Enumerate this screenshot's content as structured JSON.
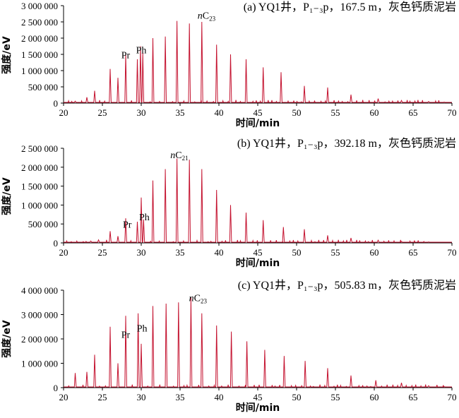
{
  "chart_data": [
    {
      "type": "line",
      "title": "(a) YQ1井，P₁₋₃p，167.5 m，灰色钙质泥岩",
      "xlabel": "时间/min",
      "ylabel": "强度/eV",
      "xlim": [
        20,
        70
      ],
      "ylim": [
        0,
        3000000
      ],
      "xticks": [
        20,
        25,
        30,
        35,
        40,
        45,
        50,
        55,
        60,
        65,
        70
      ],
      "yticks": [
        0,
        500000,
        1000000,
        1500000,
        2000000,
        2500000,
        3000000
      ],
      "ytick_labels": [
        "0",
        "500 000",
        "1 000 000",
        "1 500 000",
        "2 000 000",
        "2 500 000",
        "3 000 000"
      ],
      "annotations": [
        {
          "text": "Pr",
          "x": 28.0,
          "y": 1380000
        },
        {
          "text": "Ph",
          "x": 30.0,
          "y": 1530000
        },
        {
          "text": "nC",
          "sub": "23",
          "x": 38.4,
          "y": 2600000
        }
      ],
      "series": [
        {
          "values": [
            [
              21.5,
              60000
            ],
            [
              23.0,
              180000
            ],
            [
              24.0,
              380000
            ],
            [
              26.0,
              1050000
            ],
            [
              27.0,
              780000
            ],
            [
              28.0,
              1500000
            ],
            [
              29.5,
              1350000
            ],
            [
              29.9,
              1750000
            ],
            [
              30.2,
              1550000
            ],
            [
              31.5,
              2000000
            ],
            [
              33.1,
              2050000
            ],
            [
              34.6,
              2530000
            ],
            [
              36.2,
              2450000
            ],
            [
              37.8,
              2500000
            ],
            [
              39.7,
              1800000
            ],
            [
              41.5,
              1500000
            ],
            [
              43.5,
              1350000
            ],
            [
              45.7,
              1100000
            ],
            [
              48.0,
              950000
            ],
            [
              51.0,
              530000
            ],
            [
              54.0,
              480000
            ],
            [
              57.0,
              260000
            ],
            [
              60.5,
              140000
            ],
            [
              63.5,
              80000
            ],
            [
              67.0,
              50000
            ],
            [
              69.0,
              30000
            ]
          ]
        }
      ]
    },
    {
      "type": "line",
      "title": "(b) YQ1井，P₁₋₃p，392.18 m，灰色钙质泥岩",
      "xlabel": "时间/min",
      "ylabel": "强度/eV",
      "xlim": [
        20,
        70
      ],
      "ylim": [
        0,
        2500000
      ],
      "xticks": [
        20,
        25,
        30,
        35,
        40,
        45,
        50,
        55,
        60,
        65,
        70
      ],
      "yticks": [
        0,
        500000,
        1000000,
        1500000,
        2000000,
        2500000
      ],
      "ytick_labels": [
        "0",
        "500 000",
        "1 000 000",
        "1 500 000",
        "2 000 000",
        "2 500 000"
      ],
      "annotations": [
        {
          "text": "Pr",
          "x": 28.2,
          "y": 400000
        },
        {
          "text": "Ph",
          "x": 30.4,
          "y": 600000
        },
        {
          "text": "nC",
          "sub": "21",
          "x": 34.9,
          "y": 2240000
        }
      ],
      "series": [
        {
          "values": [
            [
              23.5,
              50000
            ],
            [
              24.5,
              80000
            ],
            [
              26.0,
              310000
            ],
            [
              27.0,
              180000
            ],
            [
              28.0,
              650000
            ],
            [
              29.5,
              560000
            ],
            [
              30.0,
              1200000
            ],
            [
              30.3,
              620000
            ],
            [
              31.5,
              1650000
            ],
            [
              33.1,
              1950000
            ],
            [
              34.6,
              2230000
            ],
            [
              36.2,
              2200000
            ],
            [
              37.8,
              1950000
            ],
            [
              39.7,
              1400000
            ],
            [
              41.5,
              1000000
            ],
            [
              43.5,
              800000
            ],
            [
              45.7,
              600000
            ],
            [
              48.3,
              420000
            ],
            [
              51.0,
              360000
            ],
            [
              54.0,
              200000
            ],
            [
              57.0,
              130000
            ],
            [
              60.5,
              70000
            ],
            [
              63.5,
              40000
            ],
            [
              67.0,
              25000
            ]
          ]
        }
      ]
    },
    {
      "type": "line",
      "title": "(c) YQ1井，P₁₋₃p，505.83 m，灰色钙质泥岩",
      "xlabel": "时间/min",
      "ylabel": "强度/eV",
      "xlim": [
        20,
        70
      ],
      "ylim": [
        0,
        4000000
      ],
      "xticks": [
        20,
        25,
        30,
        35,
        40,
        45,
        50,
        55,
        60,
        65,
        70
      ],
      "yticks": [
        0,
        1000000,
        2000000,
        3000000,
        4000000
      ],
      "ytick_labels": [
        "0",
        "1 000 000",
        "2 000 000",
        "3 000 000",
        "4 000 000"
      ],
      "annotations": [
        {
          "text": "Pr",
          "x": 28.0,
          "y": 2050000
        },
        {
          "text": "Ph",
          "x": 30.1,
          "y": 2300000
        },
        {
          "text": "nC",
          "sub": "23",
          "x": 37.3,
          "y": 3550000
        }
      ],
      "series": [
        {
          "values": [
            [
              21.5,
              600000
            ],
            [
              23.0,
              650000
            ],
            [
              24.0,
              1350000
            ],
            [
              26.0,
              2500000
            ],
            [
              27.0,
              1000000
            ],
            [
              28.0,
              2950000
            ],
            [
              29.6,
              3050000
            ],
            [
              30.0,
              1800000
            ],
            [
              31.5,
              3350000
            ],
            [
              33.2,
              3450000
            ],
            [
              34.8,
              3500000
            ],
            [
              36.4,
              3700000
            ],
            [
              37.8,
              3050000
            ],
            [
              39.7,
              2550000
            ],
            [
              41.6,
              2300000
            ],
            [
              43.6,
              1900000
            ],
            [
              45.9,
              1550000
            ],
            [
              48.4,
              1300000
            ],
            [
              51.1,
              1100000
            ],
            [
              54.0,
              800000
            ],
            [
              57.0,
              500000
            ],
            [
              60.2,
              300000
            ],
            [
              63.5,
              200000
            ],
            [
              67.0,
              80000
            ],
            [
              69.0,
              40000
            ]
          ]
        }
      ]
    }
  ]
}
